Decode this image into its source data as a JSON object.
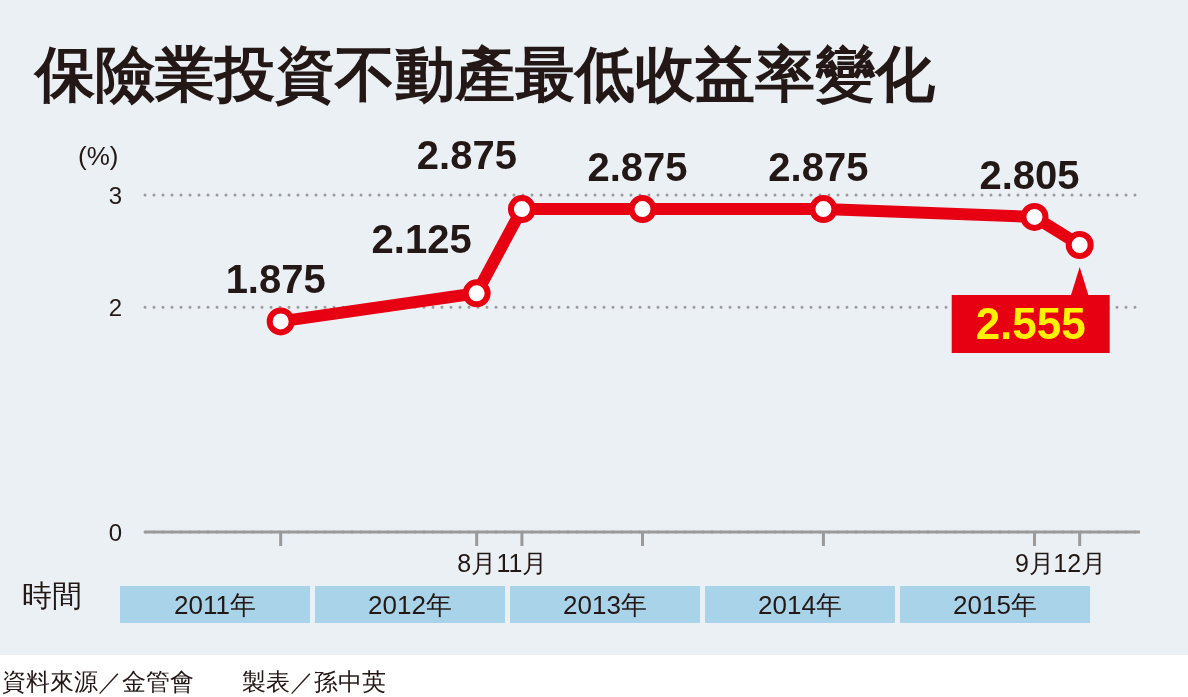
{
  "chart_data": {
    "type": "line",
    "title": "保險業投資不動產最低收益率變化",
    "x": [
      "2011-07",
      "2012-08",
      "2012-11",
      "2013-07",
      "2014-07",
      "2015-09",
      "2015-12"
    ],
    "series": [
      {
        "color": "#e60012",
        "values": [
          1.875,
          2.125,
          2.875,
          2.875,
          2.875,
          2.805,
          2.555
        ]
      }
    ],
    "ylabel": "(%)",
    "xlabel": "時間",
    "ylim": [
      0,
      3
    ],
    "yticks": [
      0,
      2,
      3
    ],
    "xlim": [
      "2010-10",
      "2016-04"
    ],
    "xticks": [
      {
        "value": "2011-07",
        "label": null
      },
      {
        "value": "2012-08",
        "label": "8月"
      },
      {
        "value": "2012-11",
        "label": "11月"
      },
      {
        "value": "2013-07",
        "label": null
      },
      {
        "value": "2014-07",
        "label": null
      },
      {
        "value": "2015-09",
        "label": "9月"
      },
      {
        "value": "2015-12",
        "label": "12月"
      }
    ],
    "grid": "y",
    "marker": "circle",
    "line_style": "solid",
    "data_labels": true,
    "annotations": [
      "2011年",
      "2012年",
      "2013年",
      "2014年",
      "2015年",
      "資料來源／金管會　　製表／孫中英"
    ]
  }
}
